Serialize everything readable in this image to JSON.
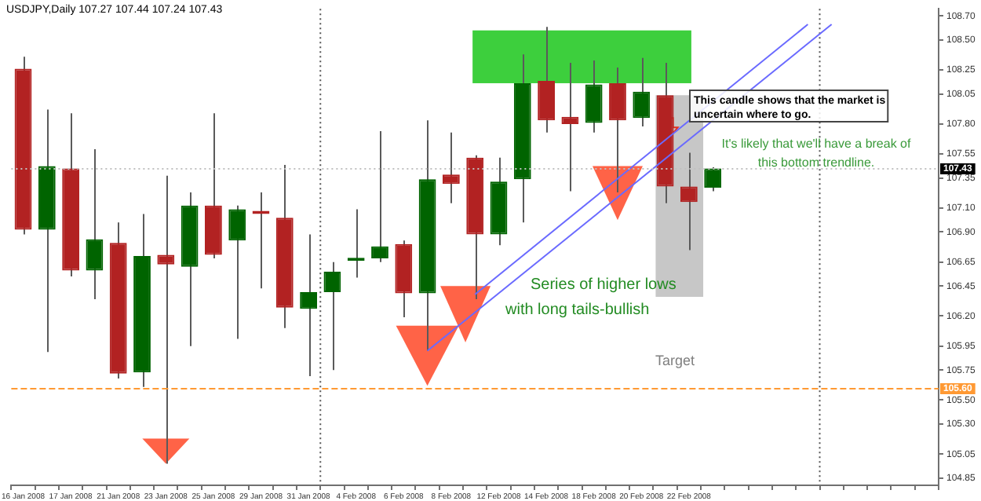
{
  "chart_data": {
    "type": "candlestick",
    "title": "USDJPY,Daily 107.27 107.44 107.24 107.43",
    "categories": [
      "16 Jan 2008",
      null,
      "17 Jan 2008",
      null,
      "21 Jan 2008",
      null,
      "23 Jan 2008",
      null,
      "25 Jan 2008",
      null,
      "29 Jan 2008",
      null,
      "31 Jan 2008",
      null,
      "4 Feb 2008",
      null,
      "6 Feb 2008",
      null,
      "8 Feb 2008",
      null,
      "12 Feb 2008",
      null,
      "14 Feb 2008",
      null,
      "18 Feb 2008",
      null,
      "20 Feb 2008",
      null,
      "22 Feb 2008",
      null,
      null,
      null,
      null,
      null,
      null,
      null,
      null,
      null,
      null
    ],
    "ohlc": [
      [
        108.26,
        108.36,
        106.88,
        106.92
      ],
      [
        106.92,
        107.92,
        105.9,
        107.45
      ],
      [
        107.43,
        107.89,
        106.53,
        106.58
      ],
      [
        106.58,
        107.59,
        106.34,
        106.84
      ],
      [
        106.81,
        106.98,
        105.68,
        105.72
      ],
      [
        105.73,
        107.05,
        105.61,
        106.7
      ],
      [
        106.71,
        107.37,
        104.97,
        106.63
      ],
      [
        106.61,
        107.23,
        105.95,
        107.12
      ],
      [
        107.12,
        107.89,
        106.68,
        106.71
      ],
      [
        106.83,
        107.12,
        106.01,
        107.09
      ],
      [
        107.07,
        107.23,
        106.43,
        107.05
      ],
      [
        107.02,
        107.46,
        106.1,
        106.27
      ],
      [
        106.26,
        106.88,
        105.7,
        106.4
      ],
      [
        106.4,
        106.65,
        105.75,
        106.57
      ],
      [
        106.66,
        107.09,
        106.52,
        106.68
      ],
      [
        106.68,
        107.74,
        106.65,
        106.78
      ],
      [
        106.8,
        106.83,
        106.19,
        106.39
      ],
      [
        106.39,
        107.83,
        105.91,
        107.34
      ],
      [
        107.38,
        107.73,
        107.14,
        107.3
      ],
      [
        107.52,
        107.54,
        106.34,
        106.88
      ],
      [
        106.88,
        107.52,
        106.79,
        107.32
      ],
      [
        107.34,
        108.38,
        106.98,
        108.14
      ],
      [
        108.16,
        108.61,
        107.73,
        107.83
      ],
      [
        107.86,
        108.31,
        107.24,
        107.8
      ],
      [
        107.81,
        108.33,
        107.73,
        108.13
      ],
      [
        108.14,
        108.27,
        107.23,
        107.83
      ],
      [
        107.85,
        108.35,
        107.78,
        108.07
      ],
      [
        108.04,
        108.31,
        107.14,
        107.28
      ],
      [
        107.28,
        107.56,
        106.75,
        107.15
      ],
      [
        107.27,
        107.44,
        107.24,
        107.43
      ],
      null,
      null,
      null,
      null,
      null,
      null,
      null,
      null,
      null
    ],
    "colors": [
      "#b22222",
      "#006400",
      "#b22222",
      "#006400",
      "#b22222",
      "#006400",
      "#b22222",
      "#006400",
      "#b22222",
      "#006400",
      "#b22222",
      "#b22222",
      "#006400",
      "#006400",
      "#006400",
      "#006400",
      "#b22222",
      "#006400",
      "#b22222",
      "#b22222",
      "#006400",
      "#006400",
      "#b22222",
      "#b22222",
      "#006400",
      "#b22222",
      "#006400",
      "#b22222",
      "#b22222",
      "#006400",
      null,
      null,
      null,
      null,
      null,
      null,
      null,
      null,
      null
    ],
    "series": [
      {
        "type": "line",
        "color": "#6a6aff",
        "values": [
          null,
          null,
          null,
          null,
          null,
          null,
          null,
          null,
          null,
          null,
          null,
          null,
          null,
          null,
          null,
          null,
          null,
          105.91,
          null,
          null,
          null,
          null,
          null,
          null,
          null,
          null,
          null,
          null,
          null,
          null,
          null,
          null,
          null,
          null,
          108.63,
          null,
          null,
          null,
          null
        ]
      },
      {
        "type": "line",
        "color": "#6a6aff",
        "values": [
          null,
          null,
          null,
          null,
          null,
          null,
          null,
          null,
          null,
          null,
          null,
          null,
          null,
          null,
          null,
          null,
          null,
          null,
          null,
          106.38,
          null,
          null,
          null,
          null,
          null,
          null,
          null,
          null,
          null,
          null,
          null,
          null,
          null,
          108.63,
          null,
          null,
          null,
          null,
          null
        ]
      }
    ],
    "ylim": [
      104.79,
      108.76
    ],
    "yticks": [
      104.85,
      105.05,
      {
        "value": 105.3,
        "label": "105.30"
      },
      {
        "value": 105.5,
        "label": "105.50"
      },
      105.75,
      105.95,
      {
        "value": 106.2,
        "label": "106.20"
      },
      106.45,
      106.65,
      {
        "value": 106.9,
        "label": "106.90"
      },
      {
        "value": 107.1,
        "label": "107.10"
      },
      107.35,
      107.55,
      {
        "value": 107.8,
        "label": "107.80"
      },
      108.05,
      108.25,
      {
        "value": 108.5,
        "label": "108.50"
      },
      {
        "value": 108.7,
        "label": "108.70"
      }
    ],
    "ref_lines": [
      {
        "axis": "y",
        "value": 107.43,
        "label": "107.43",
        "color": "#c0c0c0",
        "line_style": "dotted"
      },
      {
        "axis": "y",
        "value": 105.6,
        "label": "105.60",
        "color": "#ff9933",
        "line_style": "dashed"
      }
    ],
    "annotations": [
      "This candle shows that the market is uncertain where to go.",
      "It's likely that we'll have a break of this bottom trendline.",
      "Series of higher lows",
      "with long tails-bullish",
      "Target"
    ],
    "grid": false,
    "legend": false
  }
}
